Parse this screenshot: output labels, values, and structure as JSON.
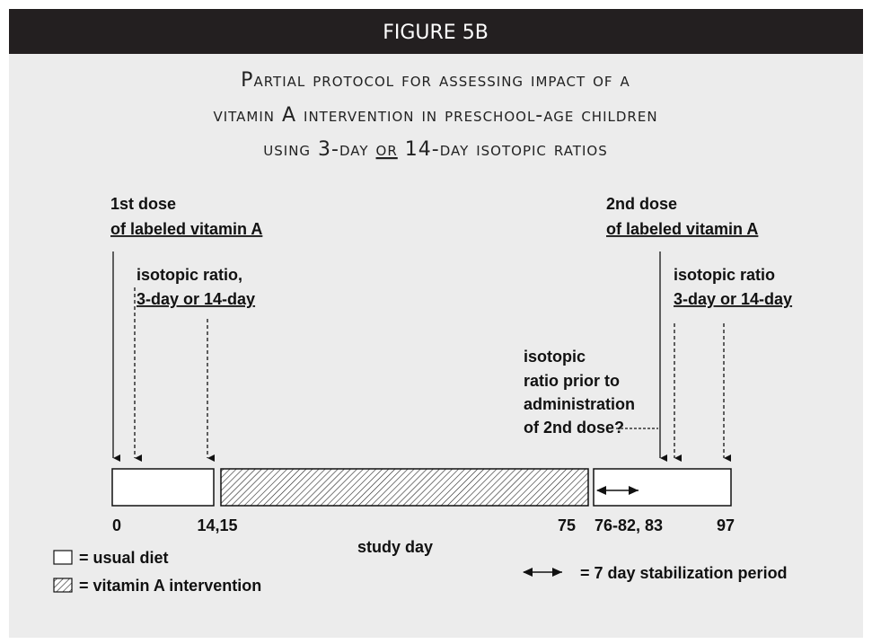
{
  "header": {
    "title": "FIGURE 5B"
  },
  "title": {
    "lines": [
      "Partial protocol for assessing impact of a",
      "vitamin A intervention in preschool-age children"
    ],
    "line3": {
      "before": "using 3-day ",
      "underlined": "or",
      "after": " 14-day isotopic ratios"
    }
  },
  "annotations": {
    "first_dose": [
      "1st dose",
      "of labeled vitamin A"
    ],
    "first_ratio": [
      "isotopic ratio,",
      "3-day or 14-day"
    ],
    "second_dose": [
      "2nd dose",
      "of labeled vitamin A"
    ],
    "second_ratio": [
      "isotopic ratio",
      "3-day or 14-day"
    ],
    "prior_ratio": [
      "isotopic",
      "ratio prior to",
      "administration",
      "of 2nd dose?"
    ]
  },
  "axis": {
    "ticks": [
      "0",
      "14,15",
      "75",
      "76-82, 83",
      "97"
    ],
    "label": "study day"
  },
  "legend": {
    "usual": "= usual diet",
    "intervention": "= vitamin A intervention",
    "stabilization": "= 7 day stabilization period"
  }
}
